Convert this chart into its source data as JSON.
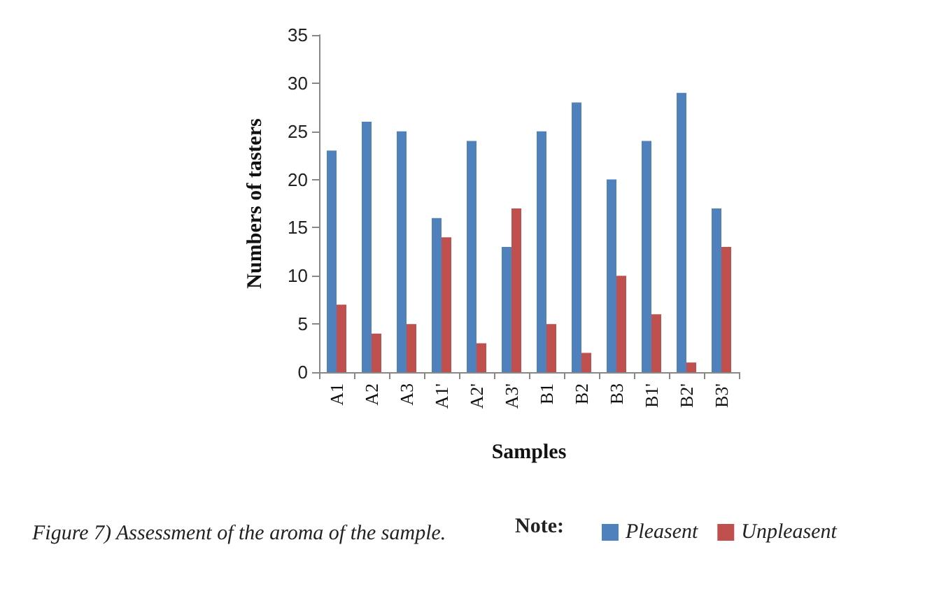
{
  "chart_data": {
    "type": "bar",
    "title": "Figure 7) Assessment of the aroma of the sample.",
    "annotations": [
      "Note:"
    ],
    "xlabel": "Samples",
    "ylabel": "Numbers of tasters",
    "categories": [
      "A1",
      "A2",
      "A3",
      "A1'",
      "A2'",
      "A3'",
      "B1",
      "B2",
      "B3",
      "B1'",
      "B2'",
      "B3'"
    ],
    "series": [
      {
        "name": "Pleasent",
        "color": "#4f81bd",
        "values": [
          23,
          26,
          25,
          16,
          24,
          13,
          25,
          28,
          20,
          24,
          29,
          17
        ]
      },
      {
        "name": "Unpleasent",
        "color": "#c0504d",
        "values": [
          7,
          4,
          5,
          14,
          3,
          17,
          5,
          2,
          10,
          6,
          1,
          13
        ]
      }
    ],
    "ylim": [
      0,
      35
    ],
    "yticks": [
      0,
      5,
      10,
      15,
      20,
      25,
      30,
      35
    ],
    "grid": false,
    "legend": "bottom"
  }
}
